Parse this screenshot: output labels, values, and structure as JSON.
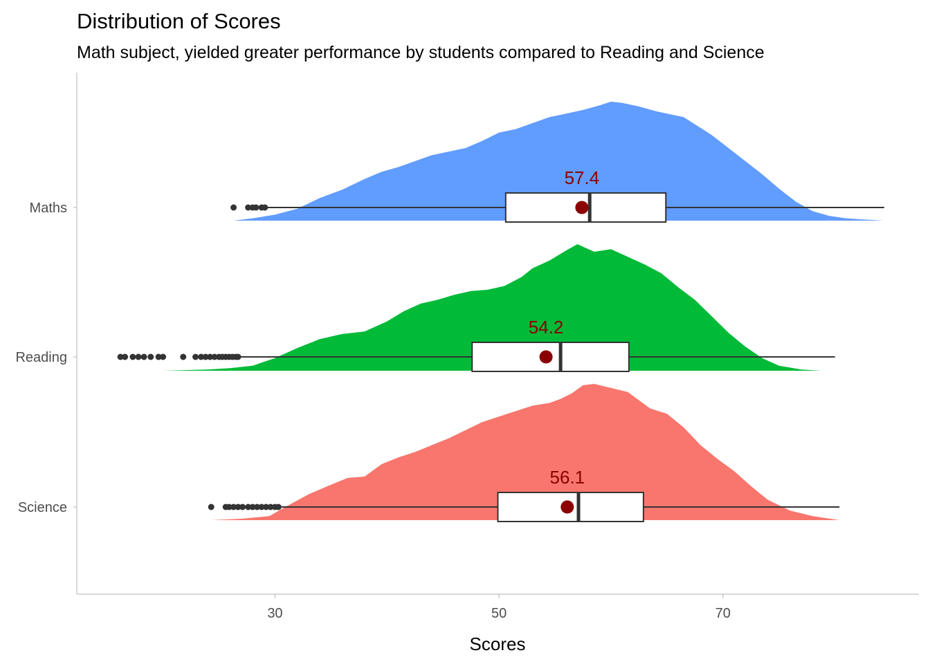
{
  "chart_data": {
    "type": "raincloud",
    "title": "Distribution of Scores",
    "subtitle": "Math subject, yielded greater performance by students compared to Reading and Science",
    "xlabel": "Scores",
    "ylabel": "",
    "xlim": [
      12.3,
      87.5
    ],
    "xticks": [
      30,
      50,
      70
    ],
    "grid": false,
    "mean_color": "#8B0000",
    "categories": [
      "Maths",
      "Reading",
      "Science"
    ],
    "series": [
      {
        "name": "Maths",
        "color": "#619CFF",
        "mean": 57.4,
        "box": {
          "whisker_low": 29.3,
          "q1": 50.6,
          "median": 58.1,
          "q3": 64.9,
          "whisker_high": 84.4
        },
        "outliers": [
          26.3,
          27.6,
          28.0,
          28.3,
          28.8,
          29.1
        ],
        "density": {
          "x": [
            26.3,
            28,
            30,
            32,
            34,
            36,
            38,
            39.5,
            41,
            42.5,
            44,
            45.5,
            47,
            48.5,
            50,
            51.5,
            53,
            54.5,
            56,
            57.5,
            59,
            60,
            61,
            62.5,
            64,
            65,
            66.5,
            67.5,
            69,
            70.5,
            72,
            73.5,
            75,
            76.5,
            78,
            79.5,
            81,
            82.5,
            84.4
          ],
          "y": [
            0.0,
            0.02,
            0.05,
            0.1,
            0.19,
            0.26,
            0.35,
            0.41,
            0.45,
            0.5,
            0.55,
            0.58,
            0.61,
            0.67,
            0.74,
            0.77,
            0.82,
            0.87,
            0.9,
            0.93,
            0.97,
            1.0,
            0.99,
            0.96,
            0.92,
            0.9,
            0.87,
            0.81,
            0.72,
            0.61,
            0.5,
            0.39,
            0.27,
            0.16,
            0.08,
            0.04,
            0.02,
            0.01,
            0.0
          ]
        }
      },
      {
        "name": "Reading",
        "color": "#00BA38",
        "mean": 54.2,
        "box": {
          "whisker_low": 26.9,
          "q1": 47.6,
          "median": 55.5,
          "q3": 61.6,
          "whisker_high": 80.0
        },
        "outliers": [
          16.2,
          16.6,
          17.3,
          17.8,
          18.3,
          18.9,
          19.6,
          20.0,
          21.8,
          22.9,
          23.4,
          23.8,
          24.2,
          24.6,
          25.0,
          25.3,
          25.6,
          25.9,
          26.2,
          26.5,
          26.7
        ],
        "density": {
          "x": [
            16.2,
            20,
            24,
            26,
            28,
            30,
            32,
            34,
            36,
            38,
            40,
            41.5,
            43,
            44.5,
            46,
            47.5,
            49,
            50.5,
            52,
            53,
            54.5,
            56,
            57,
            58.5,
            60,
            61.5,
            63,
            64.5,
            66,
            67.5,
            69,
            70.5,
            72,
            73.5,
            75,
            77,
            78.8
          ],
          "y": [
            0.0,
            0.0,
            0.01,
            0.02,
            0.04,
            0.1,
            0.18,
            0.25,
            0.29,
            0.31,
            0.39,
            0.47,
            0.53,
            0.56,
            0.6,
            0.63,
            0.64,
            0.67,
            0.74,
            0.81,
            0.87,
            0.95,
            1.0,
            0.94,
            0.96,
            0.9,
            0.84,
            0.77,
            0.66,
            0.56,
            0.43,
            0.3,
            0.19,
            0.1,
            0.04,
            0.01,
            0.0
          ]
        }
      },
      {
        "name": "Science",
        "color": "#F8766D",
        "mean": 56.1,
        "box": {
          "whisker_low": 30.5,
          "q1": 49.9,
          "median": 57.1,
          "q3": 62.9,
          "whisker_high": 80.4
        },
        "outliers": [
          24.3,
          25.6,
          25.9,
          26.3,
          26.7,
          27.1,
          27.6,
          28.0,
          28.4,
          28.8,
          29.2,
          29.6,
          30.0,
          30.3
        ],
        "density": {
          "x": [
            24.3,
            27,
            29.5,
            31,
            33,
            35,
            36.5,
            38,
            39.5,
            41,
            42.5,
            44,
            45.5,
            47,
            48.5,
            50,
            51.5,
            53,
            54.5,
            55.5,
            56.5,
            57.5,
            58.5,
            60,
            61.5,
            62.5,
            63.5,
            65,
            66.5,
            68,
            69.5,
            71,
            72.5,
            74,
            76,
            78,
            80.4
          ],
          "y": [
            0.0,
            0.01,
            0.03,
            0.1,
            0.19,
            0.26,
            0.31,
            0.32,
            0.41,
            0.46,
            0.5,
            0.55,
            0.6,
            0.66,
            0.72,
            0.76,
            0.8,
            0.84,
            0.86,
            0.89,
            0.93,
            0.99,
            1.0,
            0.97,
            0.94,
            0.88,
            0.82,
            0.78,
            0.68,
            0.55,
            0.45,
            0.36,
            0.25,
            0.15,
            0.07,
            0.03,
            0.0
          ]
        }
      }
    ]
  }
}
